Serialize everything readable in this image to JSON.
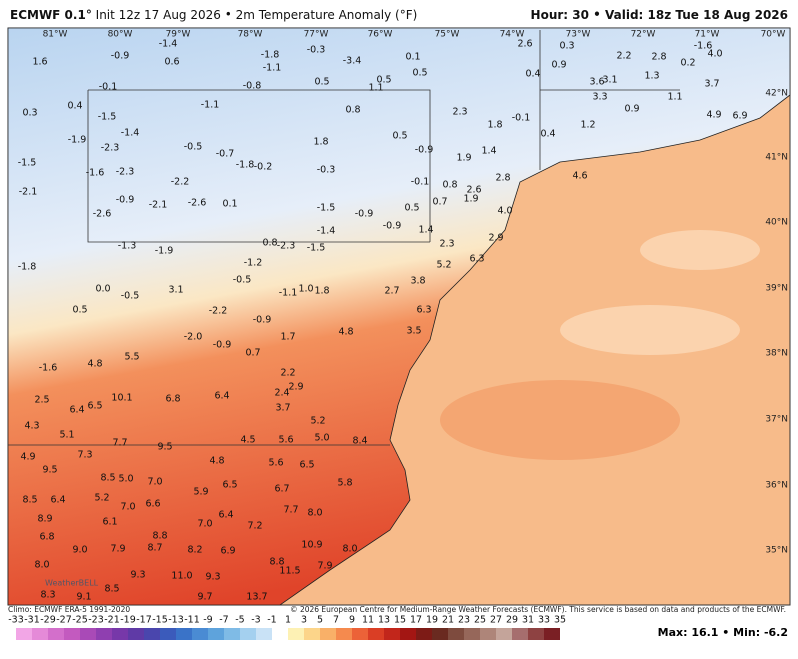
{
  "header": {
    "model": "ECMWF 0.1°",
    "init": "Init 12z 17 Aug 2026",
    "field": "2m Temperature Anomaly (°F)",
    "hour": "Hour: 30",
    "valid": "Valid: 18z Tue 18 Aug 2026"
  },
  "map": {
    "lon_labels": [
      "81°W",
      "80°W",
      "79°W",
      "78°W",
      "77°W",
      "76°W",
      "75°W",
      "74°W",
      "73°W",
      "72°W",
      "71°W",
      "70°W"
    ],
    "lat_labels": [
      "42°N",
      "41°N",
      "40°N",
      "39°N",
      "38°N",
      "37°N",
      "36°N",
      "35°N"
    ],
    "points": [
      "1.6",
      "0.3",
      "0.4",
      "-1.5",
      "-1.9",
      "-1.5",
      "-2.1",
      "-1.4",
      "-2.3",
      "-1.6",
      "-2.3",
      "-0.9",
      "-2.6",
      "-2.1",
      "-2.2",
      "-2.6",
      "0.1",
      "-0.5",
      "-0.7",
      "-1.8",
      "-0.2",
      "-1.1",
      "-1.4",
      "-0.9",
      "0.6",
      "-0.1",
      "-1.8",
      "-1.1",
      "-0.8",
      "-0.3",
      "-3.4",
      "0.5",
      "0.1",
      "0.5",
      "0.5",
      "1.1",
      "0.8",
      "0.5",
      "1.8",
      "-0.3",
      "-0.9",
      "2.3",
      "1.8",
      "-0.1",
      "2.6",
      "0.3",
      "0.4",
      "0.9",
      "2.2",
      "2.8",
      "1.3",
      "3.6",
      "3.1",
      "3.3",
      "0.9",
      "1.1",
      "0.2",
      "4.0",
      "3.7",
      "-1.6",
      "4.9",
      "6.9",
      "1.2",
      "0.4",
      "4.6",
      "1.9",
      "1.4",
      "-0.1",
      "0.8",
      "2.6",
      "1.9",
      "0.5",
      "0.7",
      "2.8",
      "4.0",
      "-1.5",
      "-0.9",
      "-1.4",
      "-0.9",
      "1.4",
      "2.3",
      "2.9",
      "6.3",
      "5.2",
      "-1.8",
      "-1.3",
      "-1.9",
      "0.0",
      "-0.5",
      "0.5",
      "3.1",
      "-0.5",
      "-1.2",
      "-2.3",
      "0.8",
      "-1.5",
      "-1.1",
      "1.0",
      "1.8",
      "2.7",
      "3.8",
      "6.3",
      "3.5",
      "-2.2",
      "-0.9",
      "-2.0",
      "-0.9",
      "0.7",
      "1.7",
      "4.8",
      "-1.6",
      "4.8",
      "5.5",
      "2.5",
      "6.4",
      "6.5",
      "10.1",
      "6.8",
      "6.4",
      "2.2",
      "2.9",
      "2.4",
      "3.7",
      "4.3",
      "5.1",
      "7.7",
      "9.5",
      "4.5",
      "5.6",
      "5.0",
      "5.2",
      "8.4",
      "4.9",
      "7.3",
      "4.8",
      "5.6",
      "6.5",
      "9.5",
      "8.5",
      "5.0",
      "7.0",
      "6.5",
      "6.7",
      "8.5",
      "6.4",
      "5.2",
      "7.0",
      "6.6",
      "5.9",
      "7.7",
      "8.0",
      "8.9",
      "6.1",
      "7.0",
      "6.4",
      "7.2",
      "6.8",
      "8.8",
      "9.0",
      "7.9",
      "8.7",
      "8.2",
      "6.9",
      "8.0",
      "8.8",
      "11.5",
      "9.3",
      "11.0",
      "9.3",
      "8.5",
      "8.3",
      "9.1",
      "9.7",
      "13.7",
      "10.9",
      "8.0",
      "7.9",
      "5.8"
    ],
    "logo": "WeatherBELL"
  },
  "footer": {
    "climo": "Climo: ECMWF ERA-5 1991-2020",
    "copyright": "© 2026 European Centre for Medium-Range Weather Forecasts (ECMWF). This service is based on data and products of the ECMWF.",
    "max": "Max: 16.1",
    "min": "Min: -6.2"
  },
  "colorbar": {
    "ticks": [
      -33,
      -31,
      -29,
      -27,
      -25,
      -23,
      -21,
      -19,
      -17,
      -15,
      -13,
      -11,
      -9,
      -7,
      -5,
      -3,
      -1,
      1,
      3,
      5,
      7,
      9,
      11,
      13,
      15,
      17,
      19,
      21,
      23,
      25,
      27,
      29,
      31,
      33,
      35
    ]
  }
}
